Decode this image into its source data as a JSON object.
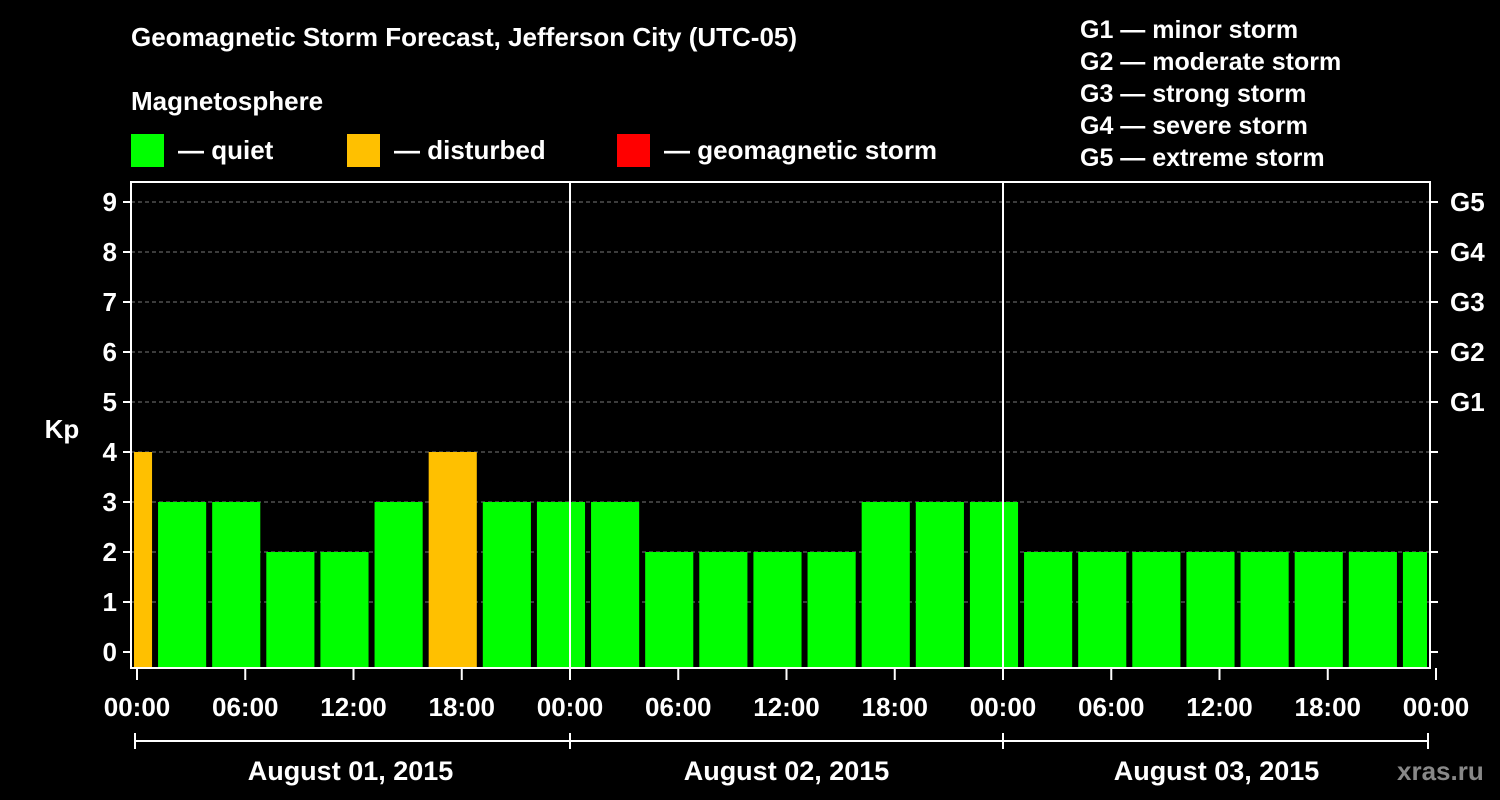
{
  "header": {
    "title": "Geomagnetic Storm Forecast, Jefferson City (UTC-05)",
    "subtitle": "Magnetosphere",
    "legend": [
      {
        "label": "— quiet",
        "color": "#00ff00"
      },
      {
        "label": "— disturbed",
        "color": "#ffc000"
      },
      {
        "label": "— geomagnetic storm",
        "color": "#ff0000"
      }
    ],
    "g_scale": [
      "G1 — minor storm",
      "G2 — moderate storm",
      "G3 — strong storm",
      "G4 — severe storm",
      "G5 — extreme storm"
    ]
  },
  "watermark": "xras.ru",
  "chart_data": {
    "type": "bar",
    "title": "Geomagnetic Storm Forecast, Jefferson City (UTC-05)",
    "ylabel": "Kp",
    "ylim": [
      0,
      9
    ],
    "y_ticks": [
      "0",
      "1",
      "2",
      "3",
      "4",
      "5",
      "6",
      "7",
      "8",
      "9"
    ],
    "right_ticks": [
      {
        "kp": 5,
        "label": "G1"
      },
      {
        "kp": 6,
        "label": "G2"
      },
      {
        "kp": 7,
        "label": "G3"
      },
      {
        "kp": 8,
        "label": "G4"
      },
      {
        "kp": 9,
        "label": "G5"
      }
    ],
    "x_range_hours": [
      -0.333,
      71.667
    ],
    "x_tick_hours": [
      0,
      6,
      12,
      18,
      24,
      30,
      36,
      42,
      48,
      54,
      60,
      66,
      72
    ],
    "x_tick_labels": [
      "00:00",
      "06:00",
      "12:00",
      "18:00",
      "00:00",
      "06:00",
      "12:00",
      "18:00",
      "00:00",
      "06:00",
      "12:00",
      "18:00",
      "00:00"
    ],
    "day_boundaries_hours": [
      24,
      48
    ],
    "days": [
      {
        "label": "August 01, 2015",
        "start_hour": -0.333,
        "end_hour": 24
      },
      {
        "label": "August 02, 2015",
        "start_hour": 24,
        "end_hour": 48
      },
      {
        "label": "August 03, 2015",
        "start_hour": 48,
        "end_hour": 71.667
      }
    ],
    "bars": [
      {
        "start_hour": -0.333,
        "end_hour": 1,
        "kp": 4,
        "status": "disturbed"
      },
      {
        "start_hour": 1,
        "end_hour": 4,
        "kp": 3,
        "status": "quiet"
      },
      {
        "start_hour": 4,
        "end_hour": 7,
        "kp": 3,
        "status": "quiet"
      },
      {
        "start_hour": 7,
        "end_hour": 10,
        "kp": 2,
        "status": "quiet"
      },
      {
        "start_hour": 10,
        "end_hour": 13,
        "kp": 2,
        "status": "quiet"
      },
      {
        "start_hour": 13,
        "end_hour": 16,
        "kp": 3,
        "status": "quiet"
      },
      {
        "start_hour": 16,
        "end_hour": 19,
        "kp": 4,
        "status": "disturbed"
      },
      {
        "start_hour": 19,
        "end_hour": 22,
        "kp": 3,
        "status": "quiet"
      },
      {
        "start_hour": 22,
        "end_hour": 25,
        "kp": 3,
        "status": "quiet"
      },
      {
        "start_hour": 25,
        "end_hour": 28,
        "kp": 3,
        "status": "quiet"
      },
      {
        "start_hour": 28,
        "end_hour": 31,
        "kp": 2,
        "status": "quiet"
      },
      {
        "start_hour": 31,
        "end_hour": 34,
        "kp": 2,
        "status": "quiet"
      },
      {
        "start_hour": 34,
        "end_hour": 37,
        "kp": 2,
        "status": "quiet"
      },
      {
        "start_hour": 37,
        "end_hour": 40,
        "kp": 2,
        "status": "quiet"
      },
      {
        "start_hour": 40,
        "end_hour": 43,
        "kp": 3,
        "status": "quiet"
      },
      {
        "start_hour": 43,
        "end_hour": 46,
        "kp": 3,
        "status": "quiet"
      },
      {
        "start_hour": 46,
        "end_hour": 49,
        "kp": 3,
        "status": "quiet"
      },
      {
        "start_hour": 49,
        "end_hour": 52,
        "kp": 2,
        "status": "quiet"
      },
      {
        "start_hour": 52,
        "end_hour": 55,
        "kp": 2,
        "status": "quiet"
      },
      {
        "start_hour": 55,
        "end_hour": 58,
        "kp": 2,
        "status": "quiet"
      },
      {
        "start_hour": 58,
        "end_hour": 61,
        "kp": 2,
        "status": "quiet"
      },
      {
        "start_hour": 61,
        "end_hour": 64,
        "kp": 2,
        "status": "quiet"
      },
      {
        "start_hour": 64,
        "end_hour": 67,
        "kp": 2,
        "status": "quiet"
      },
      {
        "start_hour": 67,
        "end_hour": 70,
        "kp": 2,
        "status": "quiet"
      },
      {
        "start_hour": 70,
        "end_hour": 71.667,
        "kp": 2,
        "status": "quiet"
      }
    ],
    "status_colors": {
      "quiet": "#00ff00",
      "disturbed": "#ffc000",
      "storm": "#ff0000"
    }
  }
}
